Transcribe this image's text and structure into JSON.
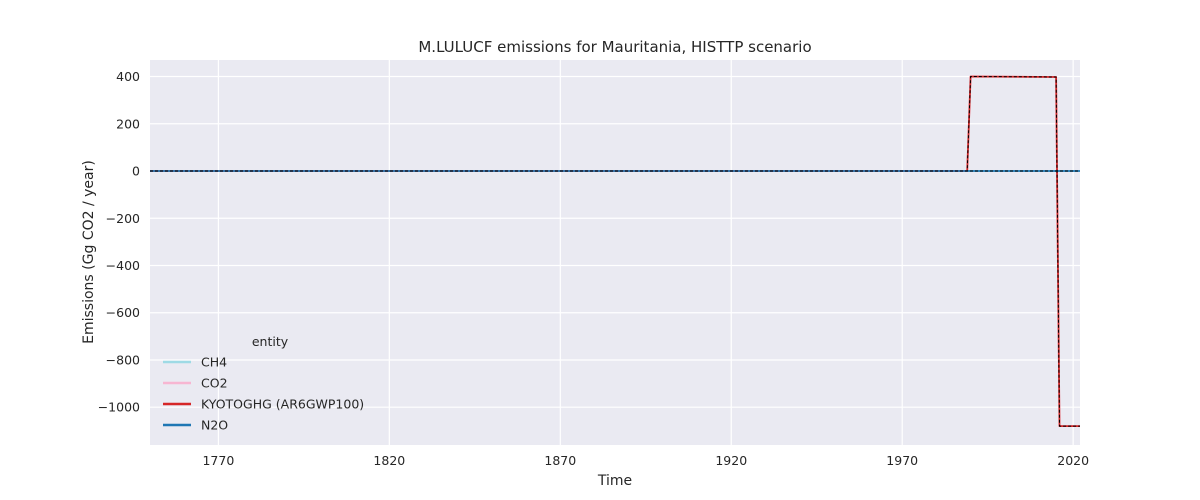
{
  "chart_data": {
    "type": "line",
    "title": "M.LULUCF emissions for Mauritania, HISTTP scenario",
    "xlabel": "Time",
    "ylabel": "Emissions (Gg CO2 / year)",
    "xlim": [
      1750,
      2022
    ],
    "ylim": [
      -1160,
      470
    ],
    "xticks": [
      1770,
      1820,
      1870,
      1920,
      1970,
      2020
    ],
    "yticks": [
      400,
      200,
      0,
      -200,
      -400,
      -600,
      -800,
      -1000
    ],
    "grid": true,
    "legend": {
      "title": "entity",
      "placement": "lower-left"
    },
    "series": [
      {
        "name": "CH4",
        "color": "#9edae5",
        "style": "solid",
        "x": [
          1750,
          2022
        ],
        "y": [
          0,
          0
        ]
      },
      {
        "name": "CO2",
        "color": "#f7b6d2",
        "style": "solid",
        "x": [
          1750,
          1989,
          1990,
          2015,
          2016,
          2022
        ],
        "y": [
          0,
          0,
          400,
          398,
          -1080,
          -1080
        ]
      },
      {
        "name": "KYOTOGHG (AR6GWP100)",
        "color": "#d62728",
        "style": "solid",
        "x": [
          1750,
          1989,
          1990,
          2015,
          2016,
          2022
        ],
        "y": [
          0,
          0,
          400,
          398,
          -1080,
          -1080
        ]
      },
      {
        "name": "N2O",
        "color": "#1f77b4",
        "style": "solid",
        "x": [
          1750,
          2022
        ],
        "y": [
          0,
          0
        ]
      }
    ],
    "overlays": [
      {
        "color": "#000000",
        "style": "dashed",
        "x": [
          1750,
          1989,
          1990,
          2015,
          2016,
          2022
        ],
        "y": [
          0,
          0,
          400,
          398,
          -1080,
          -1080
        ]
      },
      {
        "color": "#000000",
        "style": "dashed",
        "x": [
          1750,
          2022
        ],
        "y": [
          0,
          0
        ]
      }
    ]
  }
}
